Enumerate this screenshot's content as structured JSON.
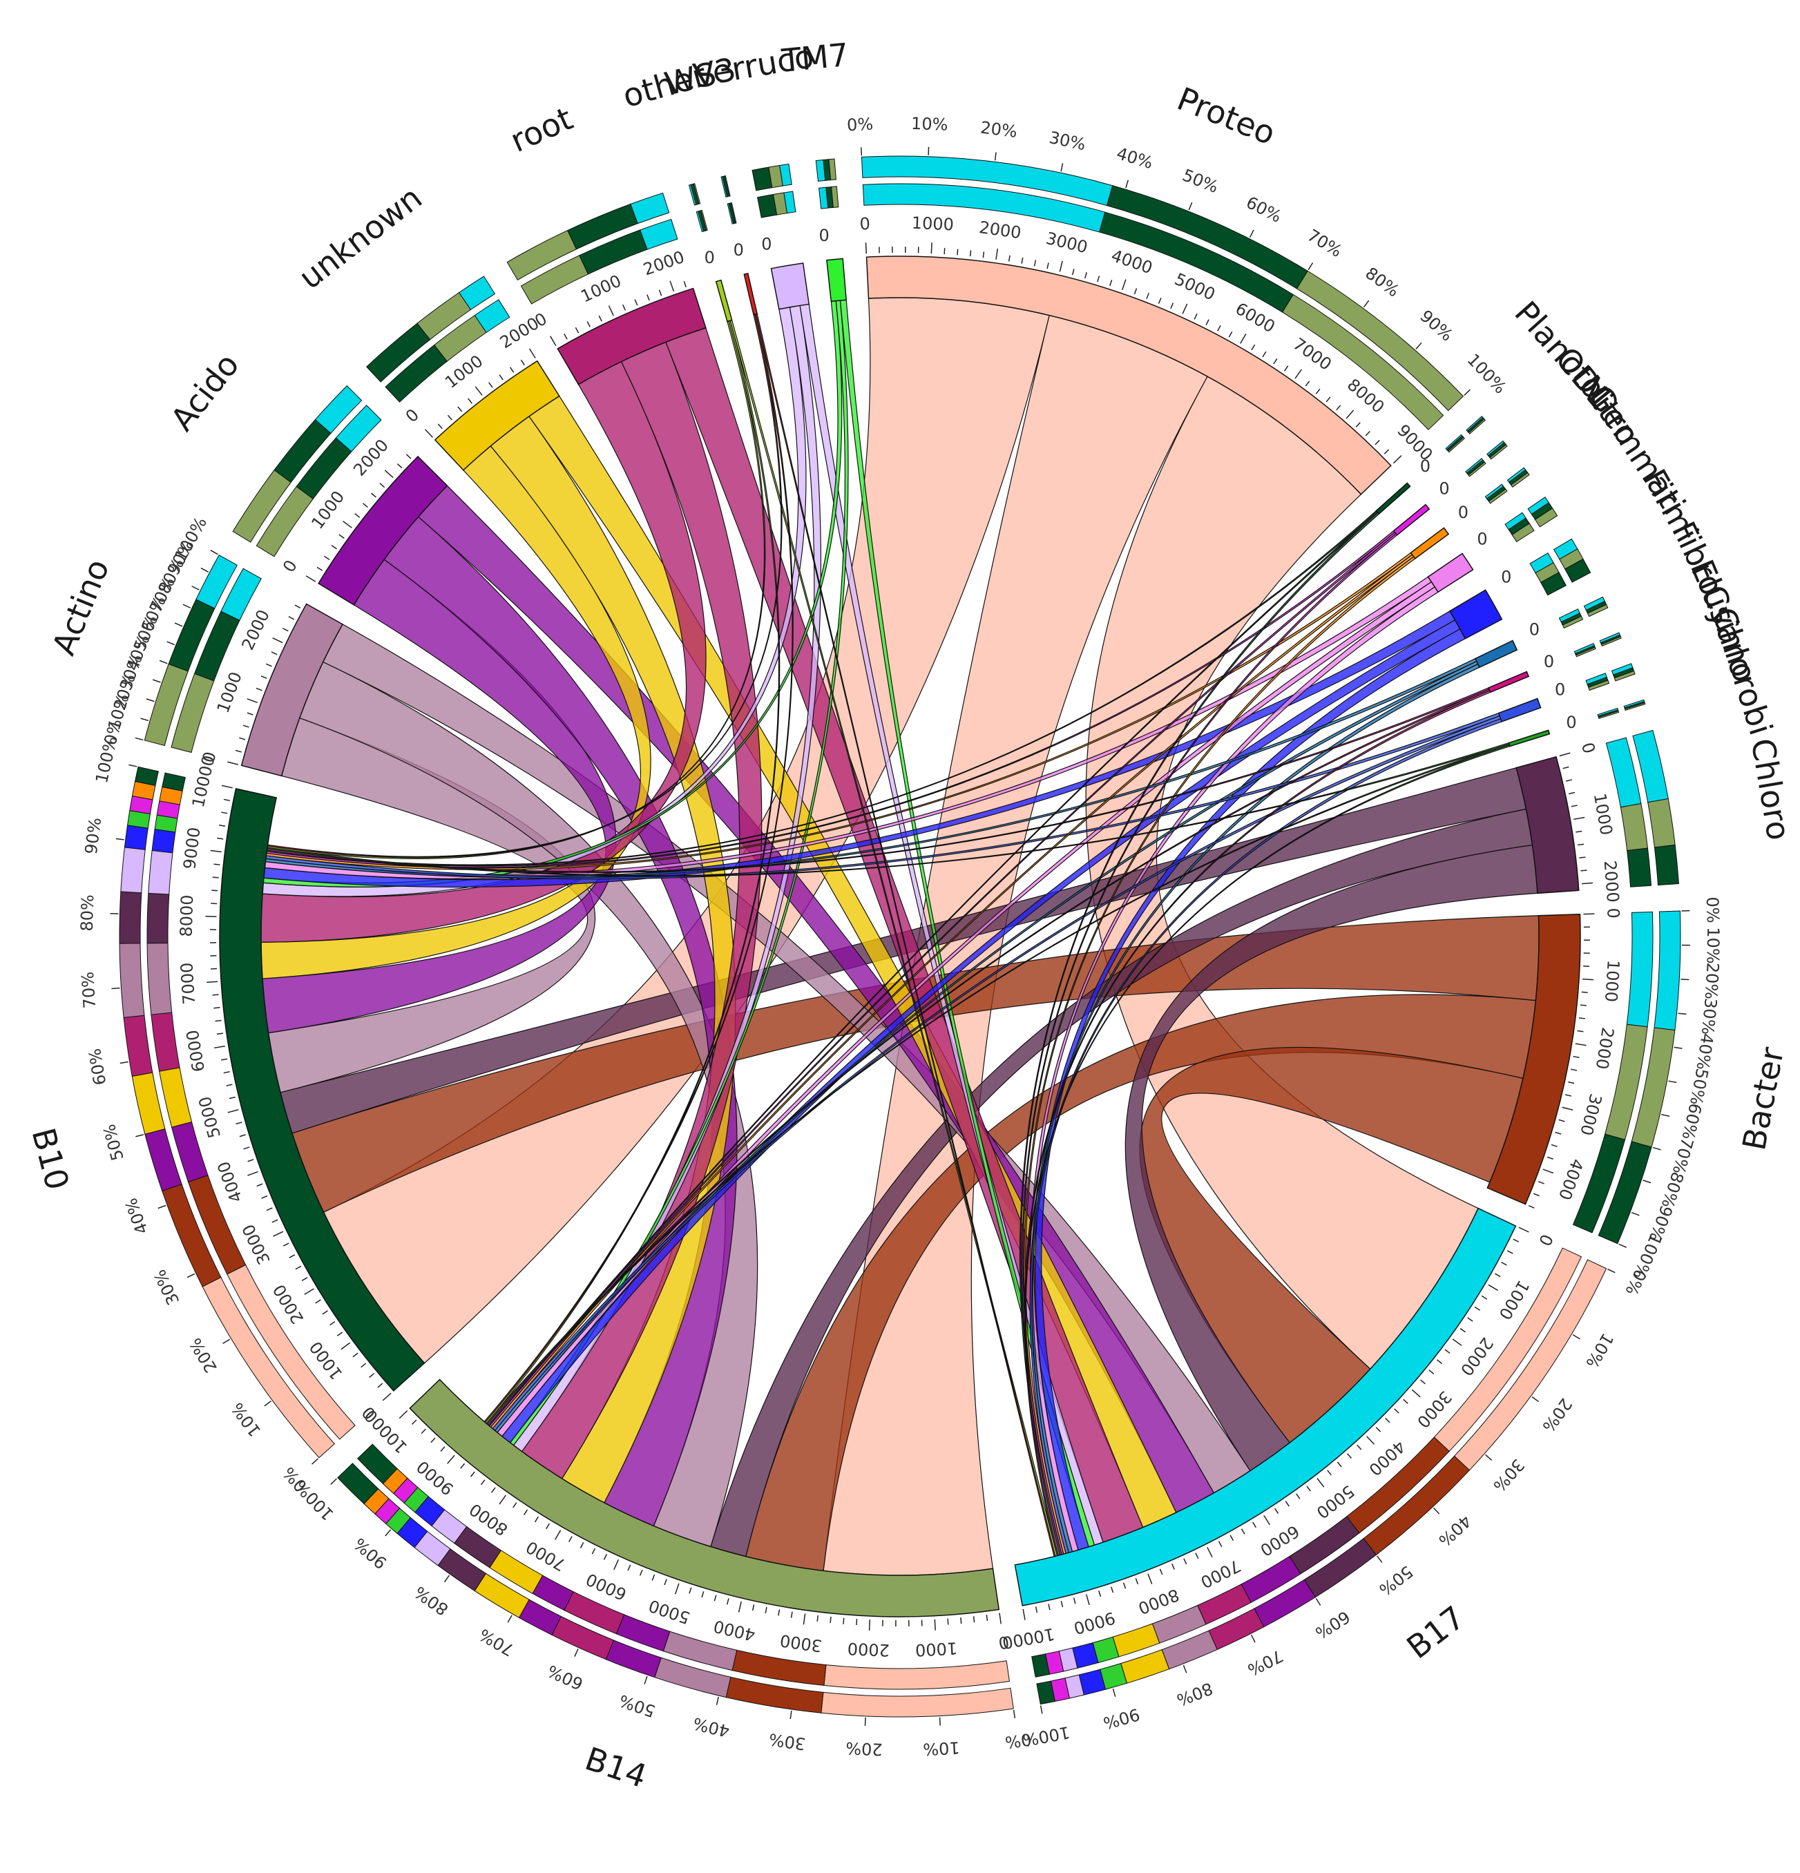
{
  "chart_data": {
    "type": "chord",
    "title": "",
    "segments": [
      {
        "id": "Proteo",
        "label": "Proteo",
        "color": "#ffbfaa",
        "size": 9000,
        "axis_max": 9000,
        "axis_step": 1000,
        "pct_color": "#00d8e8",
        "comp": [
          [
            "#00d8e8",
            0.38
          ],
          [
            "#004d26",
            0.32
          ],
          [
            "#8aa35c",
            0.3
          ]
        ]
      },
      {
        "id": "Plancto",
        "label": "Plancto",
        "color": "#004d26",
        "size": 70,
        "axis_max": 0,
        "axis_step": 0,
        "comp": [
          [
            "#00d8e8",
            0.3
          ],
          [
            "#004d26",
            0.4
          ],
          [
            "#8aa35c",
            0.3
          ]
        ]
      },
      {
        "id": "OD1",
        "label": "OD1",
        "color": "#e020e0",
        "size": 90,
        "axis_max": 0,
        "axis_step": 0,
        "comp": [
          [
            "#00d8e8",
            0.3
          ],
          [
            "#004d26",
            0.4
          ],
          [
            "#8aa35c",
            0.3
          ]
        ]
      },
      {
        "id": "Nitro",
        "label": "Nitro",
        "color": "#ff8c00",
        "size": 120,
        "axis_max": 0,
        "axis_step": 0,
        "comp": [
          [
            "#00d8e8",
            0.3
          ],
          [
            "#004d26",
            0.4
          ],
          [
            "#8aa35c",
            0.3
          ]
        ]
      },
      {
        "id": "Gemmati",
        "label": "Gemmati",
        "color": "#ee82ee",
        "size": 300,
        "axis_max": 0,
        "axis_step": 0,
        "comp": [
          [
            "#00d8e8",
            0.3
          ],
          [
            "#004d26",
            0.3
          ],
          [
            "#8aa35c",
            0.4
          ]
        ]
      },
      {
        "id": "Firmi",
        "label": "Firmi",
        "color": "#2020ff",
        "size": 520,
        "axis_max": 0,
        "axis_step": 0,
        "comp": [
          [
            "#00d8e8",
            0.3
          ],
          [
            "#8aa35c",
            0.3
          ],
          [
            "#004d26",
            0.4
          ]
        ]
      },
      {
        "id": "Fibro",
        "label": "Fibro",
        "color": "#1a6fb0",
        "size": 160,
        "axis_max": 0,
        "axis_step": 0,
        "comp": [
          [
            "#00d8e8",
            0.4
          ],
          [
            "#004d26",
            0.3
          ],
          [
            "#8aa35c",
            0.3
          ]
        ]
      },
      {
        "id": "Elusi",
        "label": "Elusi",
        "color": "#d01080",
        "size": 80,
        "axis_max": 0,
        "axis_step": 0,
        "comp": [
          [
            "#00d8e8",
            0.4
          ],
          [
            "#004d26",
            0.3
          ],
          [
            "#8aa35c",
            0.3
          ]
        ]
      },
      {
        "id": "Cyano",
        "label": "Cyano",
        "color": "#3050e0",
        "size": 150,
        "axis_max": 0,
        "axis_step": 0,
        "comp": [
          [
            "#00d8e8",
            0.4
          ],
          [
            "#004d26",
            0.3
          ],
          [
            "#8aa35c",
            0.3
          ]
        ]
      },
      {
        "id": "Chlorobi",
        "label": "Chlorobi",
        "color": "#20a020",
        "size": 60,
        "axis_max": 0,
        "axis_step": 0,
        "comp": [
          [
            "#00d8e8",
            0.4
          ],
          [
            "#004d26",
            0.3
          ],
          [
            "#8aa35c",
            0.3
          ]
        ]
      },
      {
        "id": "Chloro",
        "label": "Chloro",
        "color": "#5a2a50",
        "size": 2100,
        "axis_max": 2000,
        "axis_step": 1000,
        "pct_color": "#00d8e8",
        "comp": [
          [
            "#00d8e8",
            0.45
          ],
          [
            "#8aa35c",
            0.3
          ],
          [
            "#004d26",
            0.25
          ]
        ]
      },
      {
        "id": "Bacter",
        "label": "Bacter",
        "color": "#9b3311",
        "size": 4600,
        "axis_max": 4000,
        "axis_step": 1000,
        "pct_color": "#00d8e8",
        "comp": [
          [
            "#00d8e8",
            0.35
          ],
          [
            "#8aa35c",
            0.35
          ],
          [
            "#004d26",
            0.3
          ]
        ]
      },
      {
        "id": "B17",
        "label": "B17",
        "color": "#00d8e8",
        "size": 10000,
        "axis_max": 10000,
        "axis_step": 1000,
        "comp": [
          [
            "#ffbfaa",
            0.33
          ],
          [
            "#9b3311",
            0.17
          ],
          [
            "#5a2a50",
            0.1
          ],
          [
            "#8a0fa0",
            0.08
          ],
          [
            "#b02070",
            0.07
          ],
          [
            "#b080a0",
            0.07
          ],
          [
            "#f0c800",
            0.06
          ],
          [
            "#30d030",
            0.03
          ],
          [
            "#2020ff",
            0.03
          ],
          [
            "#d8b8ff",
            0.02
          ],
          [
            "#e020e0",
            0.02
          ],
          [
            "#004d26",
            0.02
          ]
        ]
      },
      {
        "id": "B14",
        "label": "B14",
        "color": "#8aa35c",
        "size": 10000,
        "axis_max": 10000,
        "axis_step": 1000,
        "comp": [
          [
            "#ffbfaa",
            0.26
          ],
          [
            "#9b3311",
            0.13
          ],
          [
            "#b080a0",
            0.1
          ],
          [
            "#8a0fa0",
            0.07
          ],
          [
            "#b02070",
            0.08
          ],
          [
            "#8a0fa0",
            0.05
          ],
          [
            "#f0c800",
            0.07
          ],
          [
            "#5a2a50",
            0.06
          ],
          [
            "#d8b8ff",
            0.04
          ],
          [
            "#2020ff",
            0.03
          ],
          [
            "#30d030",
            0.02
          ],
          [
            "#e020e0",
            0.02
          ],
          [
            "#ff8c00",
            0.02
          ],
          [
            "#004d26",
            0.05
          ]
        ]
      },
      {
        "id": "B10",
        "label": "B10",
        "color": "#004d26",
        "size": 10000,
        "axis_max": 10000,
        "axis_step": 1000,
        "comp": [
          [
            "#ffbfaa",
            0.28
          ],
          [
            "#9b3311",
            0.14
          ],
          [
            "#8a0fa0",
            0.08
          ],
          [
            "#f0c800",
            0.08
          ],
          [
            "#b02070",
            0.08
          ],
          [
            "#b080a0",
            0.1
          ],
          [
            "#5a2a50",
            0.07
          ],
          [
            "#d8b8ff",
            0.06
          ],
          [
            "#2020ff",
            0.03
          ],
          [
            "#30d030",
            0.02
          ],
          [
            "#e020e0",
            0.02
          ],
          [
            "#ff8c00",
            0.02
          ],
          [
            "#004d26",
            0.02
          ]
        ]
      },
      {
        "id": "Actino",
        "label": "Actino",
        "color": "#b080a0",
        "size": 2700,
        "axis_max": 2000,
        "axis_step": 1000,
        "comp": [
          [
            "#8aa35c",
            0.4
          ],
          [
            "#004d26",
            0.35
          ],
          [
            "#00d8e8",
            0.25
          ]
        ]
      },
      {
        "id": "Acido",
        "label": "Acido",
        "color": "#8a0fa0",
        "size": 2500,
        "axis_max": 2000,
        "axis_step": 1000,
        "comp": [
          [
            "#8aa35c",
            0.4
          ],
          [
            "#004d26",
            0.35
          ],
          [
            "#00d8e8",
            0.25
          ]
        ]
      },
      {
        "id": "unknown",
        "label": "unknown",
        "color": "#f0c800",
        "size": 2000,
        "axis_max": 2000,
        "axis_step": 1000,
        "comp": [
          [
            "#004d26",
            0.45
          ],
          [
            "#8aa35c",
            0.35
          ],
          [
            "#00d8e8",
            0.2
          ]
        ]
      },
      {
        "id": "root",
        "label": "root",
        "color": "#b02070",
        "size": 2300,
        "axis_max": 2000,
        "axis_step": 1000,
        "comp": [
          [
            "#8aa35c",
            0.4
          ],
          [
            "#004d26",
            0.4
          ],
          [
            "#00d8e8",
            0.2
          ]
        ]
      },
      {
        "id": "other",
        "label": "other",
        "color": "#a0d020",
        "size": 80,
        "axis_max": 0,
        "axis_step": 0,
        "comp": [
          [
            "#00d8e8",
            0.3
          ],
          [
            "#004d26",
            0.5
          ],
          [
            "#8aa35c",
            0.2
          ]
        ]
      },
      {
        "id": "WS3",
        "label": "WS3",
        "color": "#e02020",
        "size": 60,
        "axis_max": 0,
        "axis_step": 0,
        "comp": [
          [
            "#00d8e8",
            0.3
          ],
          [
            "#004d26",
            0.5
          ],
          [
            "#8aa35c",
            0.2
          ]
        ]
      },
      {
        "id": "Verruco",
        "label": "Verruco",
        "color": "#d8b8ff",
        "size": 500,
        "axis_max": 0,
        "axis_step": 0,
        "comp": [
          [
            "#004d26",
            0.45
          ],
          [
            "#8aa35c",
            0.3
          ],
          [
            "#00d8e8",
            0.25
          ]
        ]
      },
      {
        "id": "TM7",
        "label": "TM7",
        "color": "#30f030",
        "size": 250,
        "axis_max": 0,
        "axis_step": 0,
        "comp": [
          [
            "#00d8e8",
            0.4
          ],
          [
            "#004d26",
            0.3
          ],
          [
            "#8aa35c",
            0.3
          ]
        ]
      }
    ],
    "ribbons": [
      {
        "source": "Proteo",
        "target": "B10",
        "value": 3000
      },
      {
        "source": "Proteo",
        "target": "B14",
        "value": 2800
      },
      {
        "source": "Proteo",
        "target": "B17",
        "value": 3200
      },
      {
        "source": "Bacter",
        "target": "B10",
        "value": 1400
      },
      {
        "source": "Bacter",
        "target": "B14",
        "value": 1300
      },
      {
        "source": "Bacter",
        "target": "B17",
        "value": 1800
      },
      {
        "source": "Chloro",
        "target": "B10",
        "value": 700
      },
      {
        "source": "Chloro",
        "target": "B14",
        "value": 600
      },
      {
        "source": "Chloro",
        "target": "B17",
        "value": 800
      },
      {
        "source": "Actino",
        "target": "B10",
        "value": 1000
      },
      {
        "source": "Actino",
        "target": "B14",
        "value": 1000
      },
      {
        "source": "Actino",
        "target": "B17",
        "value": 700
      },
      {
        "source": "Acido",
        "target": "B10",
        "value": 900
      },
      {
        "source": "Acido",
        "target": "B14",
        "value": 900
      },
      {
        "source": "Acido",
        "target": "B17",
        "value": 700
      },
      {
        "source": "unknown",
        "target": "B10",
        "value": 600
      },
      {
        "source": "unknown",
        "target": "B14",
        "value": 800
      },
      {
        "source": "unknown",
        "target": "B17",
        "value": 600
      },
      {
        "source": "root",
        "target": "B10",
        "value": 800
      },
      {
        "source": "root",
        "target": "B14",
        "value": 800
      },
      {
        "source": "root",
        "target": "B17",
        "value": 700
      },
      {
        "source": "Verruco",
        "target": "B10",
        "value": 180
      },
      {
        "source": "Verruco",
        "target": "B14",
        "value": 170
      },
      {
        "source": "Verruco",
        "target": "B17",
        "value": 150
      },
      {
        "source": "TM7",
        "target": "B10",
        "value": 80
      },
      {
        "source": "TM7",
        "target": "B14",
        "value": 70
      },
      {
        "source": "TM7",
        "target": "B17",
        "value": 100
      },
      {
        "source": "Firmi",
        "target": "B10",
        "value": 170
      },
      {
        "source": "Firmi",
        "target": "B14",
        "value": 170
      },
      {
        "source": "Firmi",
        "target": "B17",
        "value": 180
      },
      {
        "source": "Gemmati",
        "target": "B10",
        "value": 100
      },
      {
        "source": "Gemmati",
        "target": "B14",
        "value": 100
      },
      {
        "source": "Gemmati",
        "target": "B17",
        "value": 100
      },
      {
        "source": "Fibro",
        "target": "B10",
        "value": 50
      },
      {
        "source": "Fibro",
        "target": "B14",
        "value": 50
      },
      {
        "source": "Fibro",
        "target": "B17",
        "value": 60
      },
      {
        "source": "Cyano",
        "target": "B10",
        "value": 50
      },
      {
        "source": "Cyano",
        "target": "B14",
        "value": 50
      },
      {
        "source": "Cyano",
        "target": "B17",
        "value": 50
      },
      {
        "source": "Nitro",
        "target": "B10",
        "value": 40
      },
      {
        "source": "Nitro",
        "target": "B14",
        "value": 40
      },
      {
        "source": "Nitro",
        "target": "B17",
        "value": 40
      },
      {
        "source": "OD1",
        "target": "B10",
        "value": 30
      },
      {
        "source": "OD1",
        "target": "B14",
        "value": 30
      },
      {
        "source": "OD1",
        "target": "B17",
        "value": 30
      },
      {
        "source": "Plancto",
        "target": "B10",
        "value": 20
      },
      {
        "source": "Plancto",
        "target": "B14",
        "value": 20
      },
      {
        "source": "Plancto",
        "target": "B17",
        "value": 30
      },
      {
        "source": "Elusi",
        "target": "B10",
        "value": 25
      },
      {
        "source": "Elusi",
        "target": "B14",
        "value": 25
      },
      {
        "source": "Elusi",
        "target": "B17",
        "value": 30
      },
      {
        "source": "Chlorobi",
        "target": "B10",
        "value": 20
      },
      {
        "source": "Chlorobi",
        "target": "B14",
        "value": 20
      },
      {
        "source": "Chlorobi",
        "target": "B17",
        "value": 20
      },
      {
        "source": "other",
        "target": "B10",
        "value": 25
      },
      {
        "source": "other",
        "target": "B14",
        "value": 25
      },
      {
        "source": "other",
        "target": "B17",
        "value": 30
      },
      {
        "source": "WS3",
        "target": "B10",
        "value": 20
      },
      {
        "source": "WS3",
        "target": "B14",
        "value": 20
      },
      {
        "source": "WS3",
        "target": "B17",
        "value": 20
      }
    ],
    "percent_ticks": [
      "0%",
      "10%",
      "20%",
      "30%",
      "40%",
      "50%",
      "60%",
      "70%",
      "80%",
      "90%",
      "100%"
    ],
    "zero_label": "0"
  }
}
